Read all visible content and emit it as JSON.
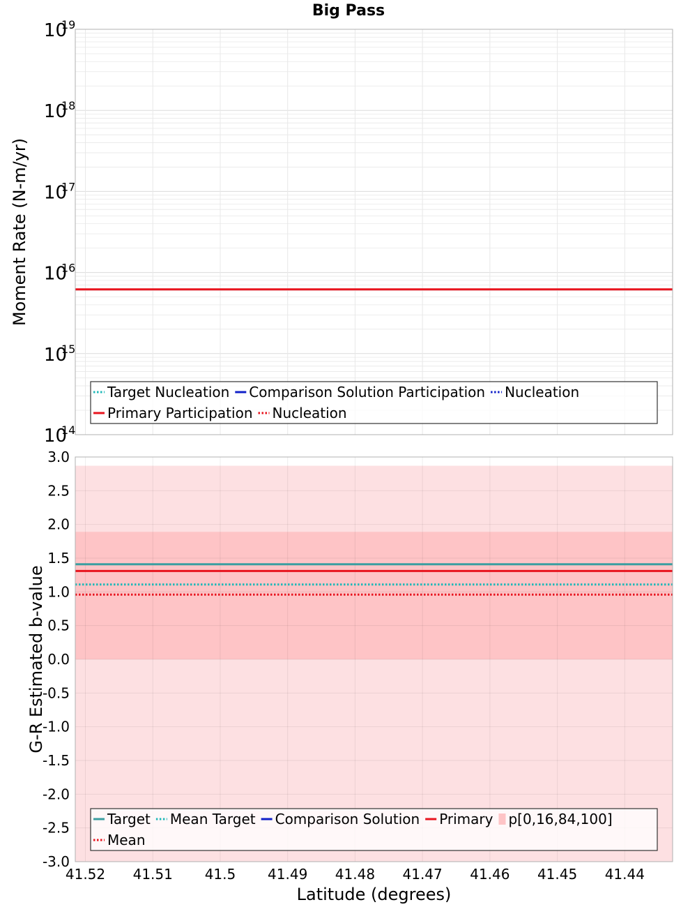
{
  "title": "Big Pass",
  "colors": {
    "target": "#3a9ea0",
    "target_dotted": "#20b8b8",
    "comparison": "#1020c8",
    "primary": "#e8141e",
    "band_outer": "#fde0e2",
    "band_inner": "#fec4c6",
    "grid": "#e8e8e8",
    "frame": "#b0b0b0"
  },
  "chart_data": [
    {
      "type": "line",
      "ylabel": "Moment Rate (N-m/yr)",
      "yscale": "log",
      "ylim": [
        100000000000000.0,
        1e+19
      ],
      "y_tick_labels": [
        {
          "base": "10",
          "exp": "14"
        },
        {
          "base": "10",
          "exp": "15"
        },
        {
          "base": "10",
          "exp": "16"
        },
        {
          "base": "10",
          "exp": "17"
        },
        {
          "base": "10",
          "exp": "18"
        },
        {
          "base": "10",
          "exp": "19"
        }
      ],
      "xlim": [
        41.5215,
        41.4329
      ],
      "grid": true,
      "legend_position": "bottom",
      "series": [
        {
          "name": "Primary Participation",
          "style": "solid",
          "color": "primary",
          "x": [
            41.5215,
            41.4329
          ],
          "y": [
            6200000000000000.0,
            6200000000000000.0
          ]
        }
      ],
      "legend": {
        "rows": [
          [
            {
              "label": "Target Nucleation",
              "style": "dotted",
              "color": "target_dotted"
            },
            {
              "label": "Comparison Solution Participation",
              "style": "solid",
              "color": "comparison"
            },
            {
              "label": "Nucleation",
              "style": "dotted",
              "color": "comparison"
            }
          ],
          [
            {
              "label": "Primary Participation",
              "style": "solid",
              "color": "primary"
            },
            {
              "label": "Nucleation",
              "style": "dotted",
              "color": "primary"
            }
          ]
        ]
      }
    },
    {
      "type": "line",
      "xlabel": "Latitude (degrees)",
      "ylabel": "G-R Estimated b-value",
      "ylim": [
        -3.0,
        3.0
      ],
      "xlim": [
        41.5215,
        41.4329
      ],
      "x_ticks": [
        41.52,
        41.51,
        41.5,
        41.49,
        41.48,
        41.47,
        41.46,
        41.45,
        41.44
      ],
      "x_tick_labels": [
        "41.52",
        "41.51",
        "41.5",
        "41.49",
        "41.48",
        "41.47",
        "41.46",
        "41.45",
        "41.44"
      ],
      "y_ticks": [
        3.0,
        2.5,
        2.0,
        1.5,
        1.0,
        0.5,
        0.0,
        -0.5,
        -1.0,
        -1.5,
        -2.0,
        -2.5,
        -3.0
      ],
      "y_tick_labels": [
        "3.0",
        "2.5",
        "2.0",
        "1.5",
        "1.0",
        "0.5",
        "0.0",
        "-0.5",
        "-1.0",
        "-1.5",
        "-2.0",
        "-2.5",
        "-3.0"
      ],
      "grid": true,
      "legend_position": "bottom",
      "bands": [
        {
          "name": "p[0,16,84,100]",
          "lower": -3.0,
          "upper": 2.87,
          "color": "band_outer"
        },
        {
          "lower": 0.0,
          "upper": 1.89,
          "color": "band_inner"
        }
      ],
      "series": [
        {
          "name": "Target",
          "style": "solid",
          "color": "target",
          "x": [
            41.5215,
            41.4329
          ],
          "y": [
            1.41,
            1.41
          ]
        },
        {
          "name": "Mean Target",
          "style": "dotted",
          "color": "target_dotted",
          "x": [
            41.5215,
            41.4329
          ],
          "y": [
            1.11,
            1.11
          ]
        },
        {
          "name": "Primary",
          "style": "solid",
          "color": "primary",
          "x": [
            41.5215,
            41.4329
          ],
          "y": [
            1.31,
            1.31
          ]
        },
        {
          "name": "Mean",
          "style": "dotted",
          "color": "primary",
          "x": [
            41.5215,
            41.4329
          ],
          "y": [
            0.96,
            0.96
          ]
        }
      ],
      "legend": {
        "rows": [
          [
            {
              "label": "Target",
              "style": "solid",
              "color": "target"
            },
            {
              "label": "Mean Target",
              "style": "dotted",
              "color": "target_dotted"
            },
            {
              "label": "Comparison Solution",
              "style": "solid",
              "color": "comparison"
            },
            {
              "label": "Primary",
              "style": "solid",
              "color": "primary"
            },
            {
              "label": "p[0,16,84,100]",
              "style": "patch",
              "color": "band_inner"
            }
          ],
          [
            {
              "label": "Mean",
              "style": "dotted",
              "color": "primary"
            }
          ]
        ]
      }
    }
  ]
}
